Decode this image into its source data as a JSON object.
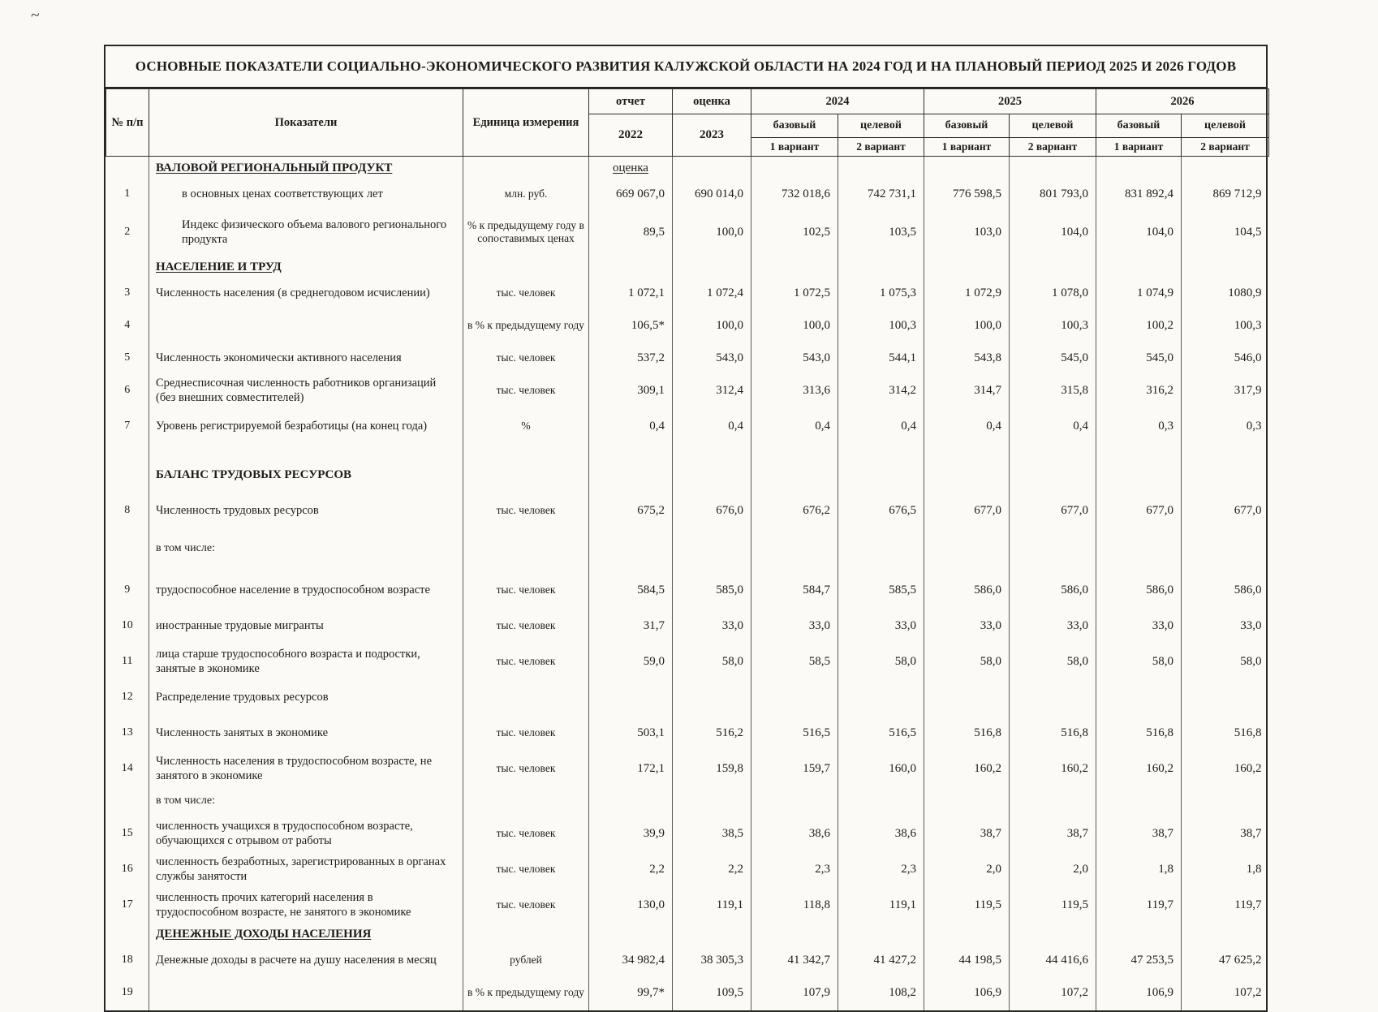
{
  "page": {
    "artifact_mark": "~",
    "title": "ОСНОВНЫЕ  ПОКАЗАТЕЛИ СОЦИАЛЬНО-ЭКОНОМИЧЕСКОГО РАЗВИТИЯ КАЛУЖСКОЙ ОБЛАСТИ НА 2024 ГОД И НА ПЛАНОВЫЙ ПЕРИОД 2025 И 2026 ГОДОВ"
  },
  "table": {
    "header": {
      "col_no": "№ п/п",
      "col_indicator": "Показатели",
      "col_unit": "Единица измерения",
      "report_label": "отчет",
      "estimate_label": "оценка",
      "report_year": "2022",
      "estimate_year": "2023",
      "years": [
        {
          "year": "2024",
          "variants": [
            {
              "type": "базовый",
              "variant": "1 вариант"
            },
            {
              "type": "целевой",
              "variant": "2 вариант"
            }
          ]
        },
        {
          "year": "2025",
          "variants": [
            {
              "type": "базовый",
              "variant": "1 вариант"
            },
            {
              "type": "целевой",
              "variant": "2 вариант"
            }
          ]
        },
        {
          "year": "2026",
          "variants": [
            {
              "type": "базовый",
              "variant": "1 вариант"
            },
            {
              "type": "целевой",
              "variant": "2 вариант"
            }
          ]
        }
      ]
    },
    "rows": [
      {
        "no": "",
        "style": "section",
        "underline": true,
        "indicator": "ВАЛОВОЙ РЕГИОНАЛЬНЫЙ ПРОДУКТ",
        "unit": "",
        "values": [
          "оценка",
          "",
          "",
          "",
          "",
          "",
          "",
          ""
        ],
        "rh": "s"
      },
      {
        "no": "1",
        "style": "data",
        "indent": true,
        "indicator": "в основных ценах соответствующих лет",
        "unit": "млн. руб.",
        "values": [
          "669 067,0",
          "690 014,0",
          "732 018,6",
          "742 731,1",
          "776 598,5",
          "801 793,0",
          "831 892,4",
          "869 712,9"
        ],
        "rh": "m"
      },
      {
        "no": "2",
        "style": "data",
        "indent": true,
        "indicator": "Индекс физического объема валового регионального продукта",
        "unit": "% к предыдущему году в сопоставимых ценах",
        "values": [
          "89,5",
          "100,0",
          "102,5",
          "103,5",
          "103,0",
          "104,0",
          "104,0",
          "104,5"
        ],
        "rh": "xl"
      },
      {
        "no": "",
        "style": "section",
        "underline": true,
        "indicator": "НАСЕЛЕНИЕ И ТРУД",
        "unit": "",
        "values": [
          "",
          "",
          "",
          "",
          "",
          "",
          "",
          ""
        ],
        "rh": "s"
      },
      {
        "no": "3",
        "style": "data",
        "indicator": "Численность населения (в среднегодовом исчислении)",
        "unit": "тыс. человек",
        "values": [
          "1 072,1",
          "1 072,4",
          "1 072,5",
          "1 075,3",
          "1 072,9",
          "1 078,0",
          "1 074,9",
          "1080,9"
        ],
        "rh": "m"
      },
      {
        "no": "4",
        "style": "data",
        "indicator": "",
        "unit": "в % к предыдущему году",
        "values": [
          "106,5*",
          "100,0",
          "100,0",
          "100,3",
          "100,0",
          "100,3",
          "100,2",
          "100,3"
        ],
        "rh": "l"
      },
      {
        "no": "5",
        "style": "data",
        "indicator": "Численность экономически активного населения",
        "unit": "тыс. человек",
        "values": [
          "537,2",
          "543,0",
          "543,0",
          "544,1",
          "543,8",
          "545,0",
          "545,0",
          "546,0"
        ],
        "rh": "m"
      },
      {
        "no": "6",
        "style": "data",
        "indicator": "Среднесписочная численность работников организаций (без внешних совместителей)",
        "unit": "тыс. человек",
        "values": [
          "309,1",
          "312,4",
          "313,6",
          "314,2",
          "314,7",
          "315,8",
          "316,2",
          "317,9"
        ],
        "rh": "l"
      },
      {
        "no": "7",
        "style": "data",
        "indicator": "Уровень регистрируемой безработицы (на конец года)",
        "unit": "%",
        "values": [
          "0,4",
          "0,4",
          "0,4",
          "0,4",
          "0,4",
          "0,4",
          "0,3",
          "0,3"
        ],
        "rh": "l"
      },
      {
        "no": "",
        "style": "section",
        "underline": false,
        "indicator": "БАЛАНС ТРУДОВЫХ РЕСУРСОВ",
        "unit": "",
        "values": [
          "",
          "",
          "",
          "",
          "",
          "",
          "",
          ""
        ],
        "rh": "g"
      },
      {
        "no": "8",
        "style": "data",
        "indicator": "Численность трудовых ресурсов",
        "unit": "тыс. человек",
        "values": [
          "675,2",
          "676,0",
          "676,2",
          "676,5",
          "677,0",
          "677,0",
          "677,0",
          "677,0"
        ],
        "rh": "m"
      },
      {
        "no": "",
        "style": "note",
        "indicator": "в том числе:",
        "unit": "",
        "values": [
          "",
          "",
          "",
          "",
          "",
          "",
          "",
          ""
        ],
        "rh": "xl"
      },
      {
        "no": "9",
        "style": "data",
        "indicator": "трудоспособное население в трудоспособном возрасте",
        "unit": "тыс. человек",
        "values": [
          "584,5",
          "585,0",
          "584,7",
          "585,5",
          "586,0",
          "586,0",
          "586,0",
          "586,0"
        ],
        "rh": "l"
      },
      {
        "no": "10",
        "style": "data",
        "indicator": "иностранные трудовые мигранты",
        "unit": "тыс. человек",
        "values": [
          "31,7",
          "33,0",
          "33,0",
          "33,0",
          "33,0",
          "33,0",
          "33,0",
          "33,0"
        ],
        "rh": "l"
      },
      {
        "no": "11",
        "style": "data",
        "indicator": "лица старше трудоспособного возраста и подростки, занятые в экономике",
        "unit": "тыс. человек",
        "values": [
          "59,0",
          "58,0",
          "58,5",
          "58,0",
          "58,0",
          "58,0",
          "58,0",
          "58,0"
        ],
        "rh": "l"
      },
      {
        "no": "12",
        "style": "data",
        "indicator": "Распределение трудовых ресурсов",
        "unit": "",
        "values": [
          "",
          "",
          "",
          "",
          "",
          "",
          "",
          ""
        ],
        "rh": "l"
      },
      {
        "no": "13",
        "style": "data",
        "indicator": "Численность занятых в экономике",
        "unit": "тыс. человек",
        "values": [
          "503,1",
          "516,2",
          "516,5",
          "516,5",
          "516,8",
          "516,8",
          "516,8",
          "516,8"
        ],
        "rh": "l"
      },
      {
        "no": "14",
        "style": "data",
        "indicator": "Численность населения в трудоспособном возрасте, не занятого в экономике",
        "unit": "тыс. человек",
        "values": [
          "172,1",
          "159,8",
          "159,7",
          "160,0",
          "160,2",
          "160,2",
          "160,2",
          "160,2"
        ],
        "rh": "l"
      },
      {
        "no": "",
        "style": "note",
        "indicator": "в том числе:",
        "unit": "",
        "values": [
          "",
          "",
          "",
          "",
          "",
          "",
          "",
          ""
        ],
        "rh": "m"
      },
      {
        "no": "15",
        "style": "data",
        "indicator": "численность учащихся в трудоспособном возрасте, обучающихся с отрывом от работы",
        "unit": "тыс. человек",
        "values": [
          "39,9",
          "38,5",
          "38,6",
          "38,6",
          "38,7",
          "38,7",
          "38,7",
          "38,7"
        ],
        "rh": "l"
      },
      {
        "no": "16",
        "style": "data",
        "indicator": "численность безработных, зарегистрированных в органах службы занятости",
        "unit": "тыс. человек",
        "values": [
          "2,2",
          "2,2",
          "2,3",
          "2,3",
          "2,0",
          "2,0",
          "1,8",
          "1,8"
        ],
        "rh": "l"
      },
      {
        "no": "17",
        "style": "data",
        "indicator": "численность прочих категорий населения в трудоспособном возрасте, не занятого в экономике",
        "unit": "тыс. человек",
        "values": [
          "130,0",
          "119,1",
          "118,8",
          "119,1",
          "119,5",
          "119,5",
          "119,7",
          "119,7"
        ],
        "rh": "l"
      },
      {
        "no": "",
        "style": "section",
        "underline": true,
        "indicator": "ДЕНЕЖНЫЕ  ДОХОДЫ  НАСЕЛЕНИЯ",
        "unit": "",
        "values": [
          "",
          "",
          "",
          "",
          "",
          "",
          "",
          ""
        ],
        "rh": "s"
      },
      {
        "no": "18",
        "style": "data",
        "indicator": "Денежные доходы в расчете на душу населения в месяц",
        "unit": "рублей",
        "values": [
          "34 982,4",
          "38 305,3",
          "41 342,7",
          "41 427,2",
          "44 198,5",
          "44 416,6",
          "47 253,5",
          "47 625,2"
        ],
        "rh": "m"
      },
      {
        "no": "19",
        "style": "data",
        "indicator": "",
        "unit": "в % к предыдущему году",
        "values": [
          "99,7*",
          "109,5",
          "107,9",
          "108,2",
          "106,9",
          "107,2",
          "106,9",
          "107,2"
        ],
        "rh": "l"
      }
    ]
  }
}
